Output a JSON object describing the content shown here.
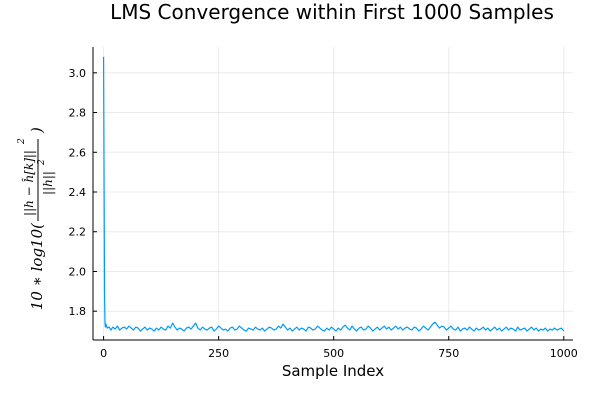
{
  "chart_data": {
    "type": "line",
    "title": "LMS Convergence within First 1000 Samples",
    "xlabel": "Sample Index",
    "ylabel": "10 * log10( ||h − ĥ[k]||² / ||h||² )",
    "ylabel_parts": {
      "prefix": "10 ∗ log10(",
      "numerator": "||h − ĥ[k]||",
      "numerator_exp": "2",
      "denominator": "||h||",
      "denominator_exp": "2",
      "suffix": ")"
    },
    "xlim": [
      -23,
      1020
    ],
    "ylim": [
      1.655,
      3.13
    ],
    "xticks": [
      0,
      250,
      500,
      750,
      1000
    ],
    "xtick_labels": [
      "0",
      "250",
      "500",
      "750",
      "1000"
    ],
    "yticks": [
      1.8,
      2.0,
      2.2,
      2.4,
      2.6,
      2.8,
      3.0
    ],
    "ytick_labels": [
      "1.8",
      "2.0",
      "2.2",
      "2.4",
      "2.6",
      "2.8",
      "3.0"
    ],
    "grid": true,
    "legend": "none",
    "colors": {
      "series": "#009af9"
    },
    "series": [
      {
        "x": [
          0,
          1,
          2,
          3,
          4,
          5,
          8,
          12,
          16,
          20,
          25,
          30,
          35,
          40,
          45,
          50,
          55,
          60,
          65,
          70,
          75,
          80,
          85,
          90,
          95,
          100,
          105,
          110,
          115,
          120,
          125,
          130,
          135,
          140,
          145,
          150,
          155,
          160,
          165,
          170,
          175,
          180,
          185,
          190,
          195,
          200,
          205,
          210,
          215,
          220,
          225,
          230,
          235,
          240,
          245,
          250,
          255,
          260,
          265,
          270,
          275,
          280,
          285,
          290,
          295,
          300,
          305,
          310,
          315,
          320,
          325,
          330,
          335,
          340,
          345,
          350,
          355,
          360,
          365,
          370,
          375,
          380,
          385,
          390,
          395,
          400,
          405,
          410,
          415,
          420,
          425,
          430,
          435,
          440,
          445,
          450,
          455,
          460,
          465,
          470,
          475,
          480,
          485,
          490,
          495,
          500,
          505,
          510,
          515,
          520,
          525,
          530,
          535,
          540,
          545,
          550,
          555,
          560,
          565,
          570,
          575,
          580,
          585,
          590,
          595,
          600,
          605,
          610,
          615,
          620,
          625,
          630,
          635,
          640,
          645,
          650,
          655,
          660,
          665,
          670,
          675,
          680,
          685,
          690,
          695,
          700,
          705,
          710,
          715,
          720,
          725,
          730,
          735,
          740,
          745,
          750,
          755,
          760,
          765,
          770,
          775,
          780,
          785,
          790,
          795,
          800,
          805,
          810,
          815,
          820,
          825,
          830,
          835,
          840,
          845,
          850,
          855,
          860,
          865,
          870,
          875,
          880,
          885,
          890,
          895,
          900,
          905,
          910,
          915,
          920,
          925,
          930,
          935,
          940,
          945,
          950,
          955,
          960,
          965,
          970,
          975,
          980,
          985,
          990,
          995,
          1000
        ],
        "y": [
          3.08,
          2.5,
          1.9,
          1.74,
          1.72,
          1.735,
          1.715,
          1.72,
          1.705,
          1.72,
          1.71,
          1.725,
          1.705,
          1.715,
          1.72,
          1.71,
          1.725,
          1.715,
          1.705,
          1.72,
          1.715,
          1.7,
          1.71,
          1.72,
          1.705,
          1.715,
          1.71,
          1.7,
          1.715,
          1.705,
          1.72,
          1.71,
          1.705,
          1.725,
          1.715,
          1.74,
          1.72,
          1.705,
          1.715,
          1.71,
          1.7,
          1.715,
          1.72,
          1.71,
          1.725,
          1.74,
          1.715,
          1.705,
          1.72,
          1.71,
          1.705,
          1.715,
          1.72,
          1.7,
          1.71,
          1.725,
          1.715,
          1.705,
          1.71,
          1.7,
          1.715,
          1.72,
          1.705,
          1.71,
          1.725,
          1.715,
          1.705,
          1.7,
          1.715,
          1.71,
          1.705,
          1.72,
          1.71,
          1.705,
          1.715,
          1.7,
          1.71,
          1.72,
          1.715,
          1.705,
          1.71,
          1.725,
          1.715,
          1.735,
          1.72,
          1.705,
          1.715,
          1.7,
          1.71,
          1.72,
          1.705,
          1.715,
          1.71,
          1.7,
          1.72,
          1.715,
          1.705,
          1.71,
          1.725,
          1.715,
          1.705,
          1.7,
          1.715,
          1.705,
          1.72,
          1.71,
          1.7,
          1.715,
          1.705,
          1.72,
          1.73,
          1.715,
          1.705,
          1.725,
          1.71,
          1.7,
          1.715,
          1.72,
          1.705,
          1.71,
          1.725,
          1.715,
          1.7,
          1.71,
          1.72,
          1.705,
          1.715,
          1.725,
          1.71,
          1.72,
          1.705,
          1.715,
          1.725,
          1.71,
          1.72,
          1.705,
          1.715,
          1.72,
          1.71,
          1.705,
          1.72,
          1.715,
          1.7,
          1.71,
          1.725,
          1.715,
          1.705,
          1.72,
          1.735,
          1.745,
          1.73,
          1.715,
          1.725,
          1.72,
          1.705,
          1.715,
          1.725,
          1.71,
          1.705,
          1.72,
          1.7,
          1.71,
          1.715,
          1.705,
          1.72,
          1.71,
          1.7,
          1.715,
          1.705,
          1.71,
          1.72,
          1.705,
          1.715,
          1.7,
          1.71,
          1.72,
          1.705,
          1.715,
          1.7,
          1.71,
          1.72,
          1.705,
          1.715,
          1.71,
          1.7,
          1.72,
          1.705,
          1.71,
          1.715,
          1.7,
          1.71,
          1.72,
          1.705,
          1.715,
          1.7,
          1.71,
          1.705,
          1.715,
          1.7,
          1.71,
          1.705,
          1.715,
          1.705,
          1.71,
          1.715,
          1.7
        ]
      }
    ]
  }
}
